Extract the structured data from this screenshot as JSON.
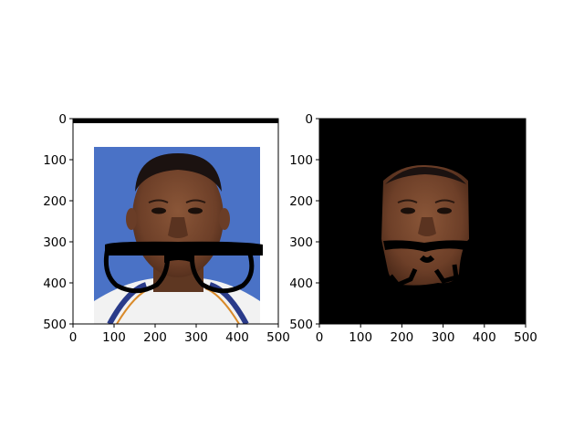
{
  "figure": {
    "description_panels": 2
  },
  "chart_data": [
    {
      "type": "image",
      "title": "",
      "xlabel": "",
      "ylabel": "",
      "xlim": [
        0,
        500
      ],
      "ylim": [
        500,
        0
      ],
      "xticks": [
        0,
        100,
        200,
        300,
        400,
        500
      ],
      "yticks": [
        0,
        100,
        200,
        300,
        400,
        500
      ],
      "xtick_labels": [
        "0",
        "100",
        "200",
        "300",
        "400",
        "500"
      ],
      "ytick_labels": [
        "0",
        "100",
        "200",
        "300",
        "400",
        "500"
      ],
      "content": "face-photo-with-glasses",
      "colors": {
        "background": "#ffffff",
        "photo_bg": "#4a72c6",
        "skin": "#7a4a32",
        "glasses": "#000000"
      }
    },
    {
      "type": "image",
      "title": "",
      "xlabel": "",
      "ylabel": "",
      "xlim": [
        0,
        500
      ],
      "ylim": [
        500,
        0
      ],
      "xticks": [
        0,
        100,
        200,
        300,
        400,
        500
      ],
      "yticks": [
        0,
        100,
        200,
        300,
        400,
        500
      ],
      "xtick_labels": [
        "0",
        "100",
        "200",
        "300",
        "400",
        "500"
      ],
      "ytick_labels": [
        "0",
        "100",
        "200",
        "300",
        "400",
        "500"
      ],
      "content": "face-mask-on-black",
      "colors": {
        "background": "#000000",
        "skin": "#7a4a32",
        "glasses": "#000000"
      }
    }
  ]
}
